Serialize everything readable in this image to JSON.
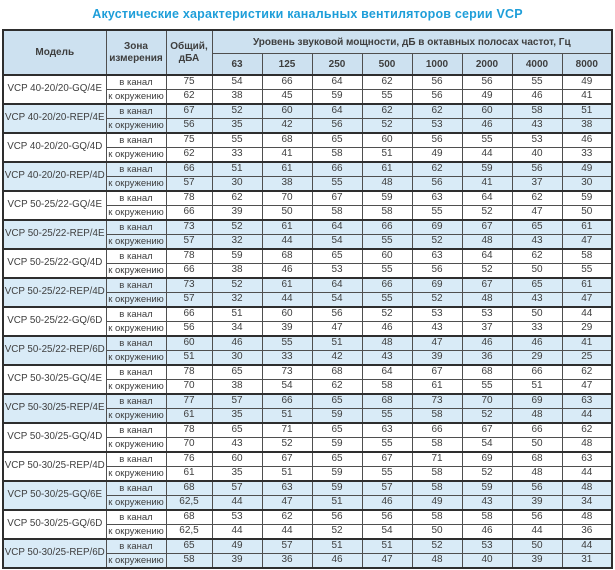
{
  "title": "Акустические характеристики канальных вентиляторов  серии VCP",
  "colors": {
    "title-color": "#1e9ed9",
    "header-bg": "#cde1f0",
    "shade-bg": "#d9ebf7",
    "text-color": "#3e3e3e",
    "border-color": "#4f4f4f",
    "strong-border": "#2e2e2e"
  },
  "table": {
    "headers": {
      "model": "Модель",
      "zone": "Зона\nизмерения",
      "total": "Общий,\nдБА",
      "group": "Уровень звуковой мощности, дБ в октавных полосах частот, Гц",
      "frequencies": [
        "63",
        "125",
        "250",
        "500",
        "1000",
        "2000",
        "4000",
        "8000"
      ]
    },
    "row_labels": {
      "duct": "в канал",
      "ambient": "к окружению"
    },
    "models": [
      {
        "name": "VCP 40-20/20-GQ/4E",
        "shaded": false,
        "duct": {
          "total": "75",
          "levels": [
            54,
            66,
            64,
            62,
            56,
            56,
            55,
            49
          ]
        },
        "ambient": {
          "total": "62",
          "levels": [
            38,
            45,
            59,
            55,
            56,
            49,
            46,
            41
          ]
        }
      },
      {
        "name": "VCP 40-20/20-REP/4E",
        "shaded": true,
        "duct": {
          "total": "67",
          "levels": [
            52,
            60,
            64,
            62,
            62,
            60,
            58,
            51
          ]
        },
        "ambient": {
          "total": "56",
          "levels": [
            35,
            42,
            56,
            52,
            53,
            46,
            43,
            38
          ]
        }
      },
      {
        "name": "VCP 40-20/20-GQ/4D",
        "shaded": false,
        "duct": {
          "total": "75",
          "levels": [
            55,
            68,
            65,
            60,
            56,
            55,
            53,
            46
          ]
        },
        "ambient": {
          "total": "62",
          "levels": [
            33,
            41,
            58,
            51,
            49,
            44,
            40,
            33
          ]
        }
      },
      {
        "name": "VCP 40-20/20-REP/4D",
        "shaded": true,
        "duct": {
          "total": "66",
          "levels": [
            51,
            61,
            66,
            61,
            62,
            59,
            56,
            49
          ]
        },
        "ambient": {
          "total": "57",
          "levels": [
            30,
            38,
            55,
            48,
            56,
            41,
            37,
            30
          ]
        }
      },
      {
        "name": "VCP 50-25/22-GQ/4E",
        "shaded": false,
        "duct": {
          "total": "78",
          "levels": [
            62,
            70,
            67,
            59,
            63,
            64,
            62,
            59
          ]
        },
        "ambient": {
          "total": "66",
          "levels": [
            39,
            50,
            58,
            58,
            55,
            52,
            47,
            50
          ]
        }
      },
      {
        "name": "VCP 50-25/22-REP/4E",
        "shaded": true,
        "duct": {
          "total": "73",
          "levels": [
            52,
            61,
            64,
            66,
            69,
            67,
            65,
            61
          ]
        },
        "ambient": {
          "total": "57",
          "levels": [
            32,
            44,
            54,
            55,
            52,
            48,
            43,
            47
          ]
        }
      },
      {
        "name": "VCP 50-25/22-GQ/4D",
        "shaded": false,
        "duct": {
          "total": "78",
          "levels": [
            59,
            68,
            65,
            60,
            63,
            64,
            62,
            58
          ]
        },
        "ambient": {
          "total": "66",
          "levels": [
            38,
            46,
            53,
            55,
            56,
            52,
            50,
            55
          ]
        }
      },
      {
        "name": "VCP 50-25/22-REP/4D",
        "shaded": true,
        "duct": {
          "total": "73",
          "levels": [
            52,
            61,
            64,
            66,
            69,
            67,
            65,
            61
          ]
        },
        "ambient": {
          "total": "57",
          "levels": [
            32,
            44,
            54,
            55,
            52,
            48,
            43,
            47
          ]
        }
      },
      {
        "name": "VCP 50-25/22-GQ/6D",
        "shaded": false,
        "duct": {
          "total": "66",
          "levels": [
            51,
            60,
            56,
            52,
            53,
            53,
            50,
            44
          ]
        },
        "ambient": {
          "total": "56",
          "levels": [
            34,
            39,
            47,
            46,
            43,
            37,
            33,
            29
          ]
        }
      },
      {
        "name": "VCP 50-25/22-REP/6D",
        "shaded": true,
        "duct": {
          "total": "60",
          "levels": [
            46,
            55,
            51,
            48,
            47,
            46,
            46,
            41
          ]
        },
        "ambient": {
          "total": "51",
          "levels": [
            30,
            33,
            42,
            43,
            39,
            36,
            29,
            25
          ]
        }
      },
      {
        "name": "VCP 50-30/25-GQ/4E",
        "shaded": false,
        "duct": {
          "total": "78",
          "levels": [
            65,
            73,
            68,
            64,
            67,
            68,
            66,
            62
          ]
        },
        "ambient": {
          "total": "70",
          "levels": [
            38,
            54,
            62,
            58,
            61,
            55,
            51,
            47
          ]
        }
      },
      {
        "name": "VCP 50-30/25-REP/4E",
        "shaded": true,
        "duct": {
          "total": "77",
          "levels": [
            57,
            66,
            65,
            68,
            73,
            70,
            69,
            63
          ]
        },
        "ambient": {
          "total": "61",
          "levels": [
            35,
            51,
            59,
            55,
            58,
            52,
            48,
            44
          ]
        }
      },
      {
        "name": "VCP 50-30/25-GQ/4D",
        "shaded": false,
        "duct": {
          "total": "78",
          "levels": [
            65,
            71,
            65,
            63,
            66,
            67,
            66,
            62
          ]
        },
        "ambient": {
          "total": "70",
          "levels": [
            43,
            52,
            59,
            55,
            58,
            54,
            50,
            48
          ]
        }
      },
      {
        "name": "VCP 50-30/25-REP/4D",
        "shaded": false,
        "duct": {
          "total": "76",
          "levels": [
            60,
            67,
            65,
            67,
            71,
            69,
            68,
            63
          ]
        },
        "ambient": {
          "total": "61",
          "levels": [
            35,
            51,
            59,
            55,
            58,
            52,
            48,
            44
          ]
        }
      },
      {
        "name": "VCP 50-30/25-GQ/6E",
        "shaded": true,
        "duct": {
          "total": "68",
          "levels": [
            57,
            63,
            59,
            57,
            58,
            59,
            56,
            48
          ]
        },
        "ambient": {
          "total": "62,5",
          "levels": [
            44,
            47,
            51,
            46,
            49,
            43,
            39,
            34
          ]
        }
      },
      {
        "name": "VCP 50-30/25-GQ/6D",
        "shaded": false,
        "duct": {
          "total": "68",
          "levels": [
            53,
            62,
            56,
            56,
            58,
            58,
            56,
            48
          ]
        },
        "ambient": {
          "total": "62,5",
          "levels": [
            44,
            44,
            52,
            54,
            50,
            46,
            44,
            36
          ]
        }
      },
      {
        "name": "VCP 50-30/25-REP/6D",
        "shaded": true,
        "duct": {
          "total": "65",
          "levels": [
            49,
            57,
            51,
            51,
            52,
            53,
            50,
            44
          ]
        },
        "ambient": {
          "total": "58",
          "levels": [
            39,
            36,
            46,
            47,
            48,
            40,
            39,
            31
          ]
        }
      }
    ]
  }
}
